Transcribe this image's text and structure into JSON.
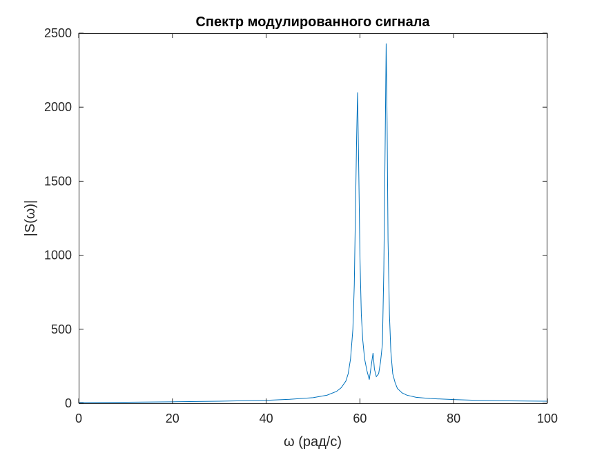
{
  "chart_data": {
    "type": "line",
    "title": "Спектр модулированного сигнала",
    "xlabel": "ω (рад/с)",
    "ylabel": "|S(ω)|",
    "xlim": [
      0,
      100
    ],
    "ylim": [
      0,
      2500
    ],
    "xticks": [
      0,
      20,
      40,
      60,
      80,
      100
    ],
    "yticks": [
      0,
      500,
      1000,
      1500,
      2000,
      2500
    ],
    "xtick_labels": [
      "0",
      "20",
      "40",
      "60",
      "80",
      "100"
    ],
    "ytick_labels": [
      "0",
      "500",
      "1000",
      "1500",
      "2000",
      "2500"
    ],
    "grid": false,
    "line_color": "#0072BD",
    "series": [
      {
        "x": [
          0,
          10,
          20,
          30,
          40,
          45,
          50,
          53,
          55,
          56,
          57,
          57.5,
          58,
          58.5,
          58.8,
          59.1,
          59.3,
          59.5,
          59.7,
          60,
          60.3,
          60.6,
          61,
          61.5,
          62,
          62.4,
          62.8,
          63.1,
          63.5,
          64,
          64.4,
          64.8,
          65.1,
          65.4,
          65.6,
          65.8,
          66,
          66.3,
          66.6,
          67,
          67.5,
          68,
          69,
          70,
          72,
          75,
          80,
          85,
          90,
          100
        ],
        "y": [
          5,
          7,
          10,
          14,
          20,
          27,
          38,
          55,
          80,
          105,
          150,
          200,
          300,
          500,
          800,
          1400,
          1800,
          2100,
          1700,
          1000,
          600,
          430,
          300,
          220,
          160,
          250,
          340,
          230,
          180,
          200,
          280,
          400,
          900,
          1800,
          2430,
          1900,
          1100,
          600,
          350,
          200,
          140,
          100,
          70,
          55,
          40,
          32,
          25,
          20,
          17,
          14
        ]
      }
    ]
  }
}
